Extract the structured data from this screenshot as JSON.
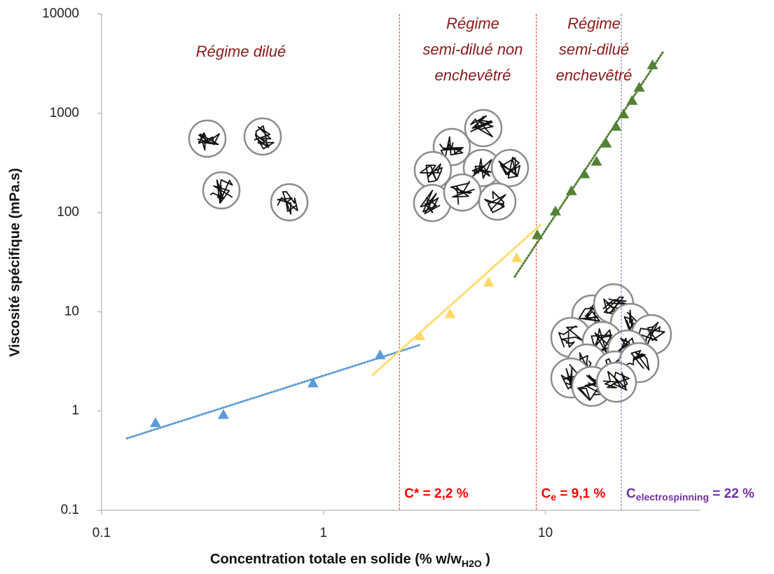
{
  "chart_data": {
    "type": "scatter",
    "x_label": {
      "main": "Concentration totale en solide (% w/w",
      "sub": "H2O",
      "rest": " )"
    },
    "y_label": "Viscosité spécifique (mPa.s)",
    "xlim": [
      0.1,
      50
    ],
    "ylim": [
      0.1,
      10000
    ],
    "xticks": [
      0.1,
      1,
      10
    ],
    "yticks": [
      0.1,
      1,
      10,
      100,
      1000,
      10000
    ],
    "log_x": true,
    "log_y": true,
    "grid": false,
    "marker": "triangle",
    "series": [
      {
        "color": "#5b9bd5",
        "x": [
          0.175,
          0.354,
          0.897,
          1.8
        ],
        "values": [
          0.76,
          0.92,
          1.91,
          3.66
        ],
        "trend_x": [
          0.13,
          2.75
        ],
        "trend_values": [
          0.53,
          4.67
        ]
      },
      {
        "color": "#ffd966",
        "x": [
          2.72,
          3.72,
          5.55,
          7.43
        ],
        "values": [
          5.7,
          9.5,
          19.8,
          34.9
        ],
        "trend_x": [
          1.67,
          9.57
        ],
        "trend_values": [
          2.32,
          75.9
        ]
      },
      {
        "color": "#548235",
        "x": [
          9.2,
          11.1,
          13.1,
          15.0,
          17.0,
          18.8,
          20.8,
          22.5,
          24.6,
          26.5,
          30.4
        ],
        "values": [
          59.5,
          103,
          165,
          244,
          327,
          498,
          735,
          980,
          1340,
          1820,
          3060
        ],
        "trend_x": [
          7.27,
          34.1
        ],
        "trend_values": [
          22.5,
          4230
        ]
      }
    ],
    "thresholds": [
      {
        "x": 2.2,
        "line_color": "#e03030",
        "label_color": "#ff0000",
        "label": {
          "main": "C* = 2,2 %"
        }
      },
      {
        "x": 9.1,
        "line_color": "#e03030",
        "label_color": "#ff0000",
        "label": {
          "main": "C",
          "sub": "e",
          "rest": " = 9,1 %"
        }
      },
      {
        "x": 22,
        "line_color": "#6f6fbf",
        "label_color": "#7030a0",
        "label": {
          "main": "C",
          "sub": "electrospinning",
          "rest": " = 22 %"
        }
      }
    ],
    "regions": [
      {
        "lines": [
          "Régime dilué"
        ]
      },
      {
        "lines": [
          "Régime",
          "semi-dilué non",
          "enchevêtré"
        ]
      },
      {
        "lines": [
          "Régime",
          "semi-dilué",
          "enchevêtré"
        ]
      }
    ]
  }
}
